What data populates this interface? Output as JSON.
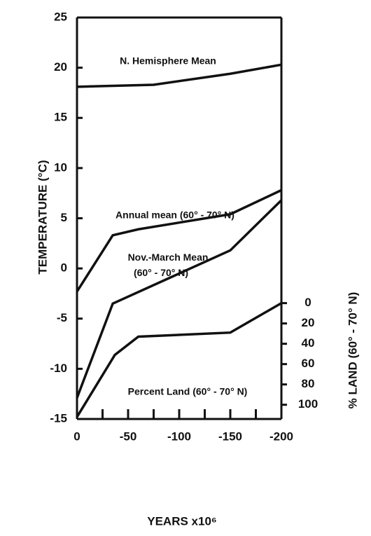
{
  "chart_data": {
    "type": "line",
    "xlabel": "YEARS x10⁶",
    "ylabel": "TEMPERATURE (°C)",
    "y2label": "% LAND (60° - 70° N)",
    "xlim": [
      0,
      -200
    ],
    "xticks": [
      0,
      -50,
      -100,
      -150,
      -200
    ],
    "ylim": [
      -15,
      25
    ],
    "yticks": [
      -15,
      -10,
      -5,
      0,
      5,
      10,
      15,
      20,
      25
    ],
    "y2lim": [
      114,
      -281
    ],
    "y2ticks": [
      0,
      20,
      40,
      60,
      80,
      100
    ],
    "series": [
      {
        "name": "N. Hemisphere Mean",
        "color": "#111111",
        "x": [
          0,
          -75,
          -150,
          -200
        ],
        "values": [
          18.1,
          18.3,
          19.4,
          20.3
        ]
      },
      {
        "name": "Annual mean (60° - 70° N)",
        "color": "#111111",
        "x": [
          0,
          -35,
          -60,
          -150,
          -200
        ],
        "values": [
          -2.3,
          3.3,
          3.9,
          5.4,
          7.8
        ]
      },
      {
        "name": "Nov.-March Mean (60° - 70° N)",
        "color": "#111111",
        "x": [
          0,
          -35,
          -150,
          -200
        ],
        "values": [
          -12.9,
          -3.5,
          1.8,
          6.8
        ]
      },
      {
        "name": "Percent Land (60° - 70° N)",
        "color": "#111111",
        "axis": "y2",
        "x": [
          0,
          -37,
          -60,
          -150,
          -200
        ],
        "values": [
          112,
          51,
          33,
          29,
          0
        ]
      }
    ]
  }
}
